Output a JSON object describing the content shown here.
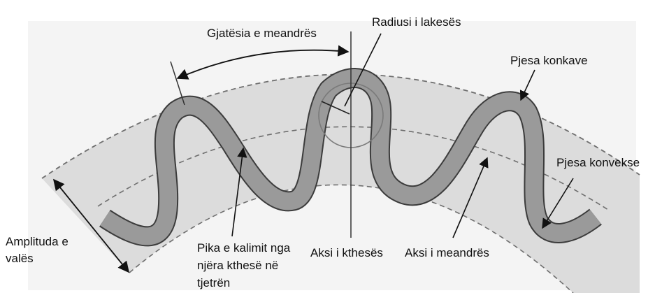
{
  "diagram": {
    "type": "meander-diagram",
    "colors": {
      "band_fill": "#dcdcdc",
      "river_fill": "#9a9a9a",
      "river_outline": "#3c3c3c",
      "dashed_line": "#6e6e6e",
      "arrow": "#111111",
      "axis_line": "#333333"
    },
    "labels": {
      "meander_length": "Gjatësia e meandrës",
      "loop_radius": "Radiusi i lakesës",
      "concave_part": "Pjesa konkave",
      "convex_part": "Pjesa konvekse",
      "wave_amplitude_line1": "Amplituda e",
      "wave_amplitude_line2": "valës",
      "inflection_point_line1": "Pika e kalimit nga",
      "inflection_point_line2": "njëra kthesë në",
      "inflection_point_line3": "tjetrën",
      "bend_axis": "Aksi i kthesës",
      "meander_axis": "Aksi i meandrës"
    }
  }
}
